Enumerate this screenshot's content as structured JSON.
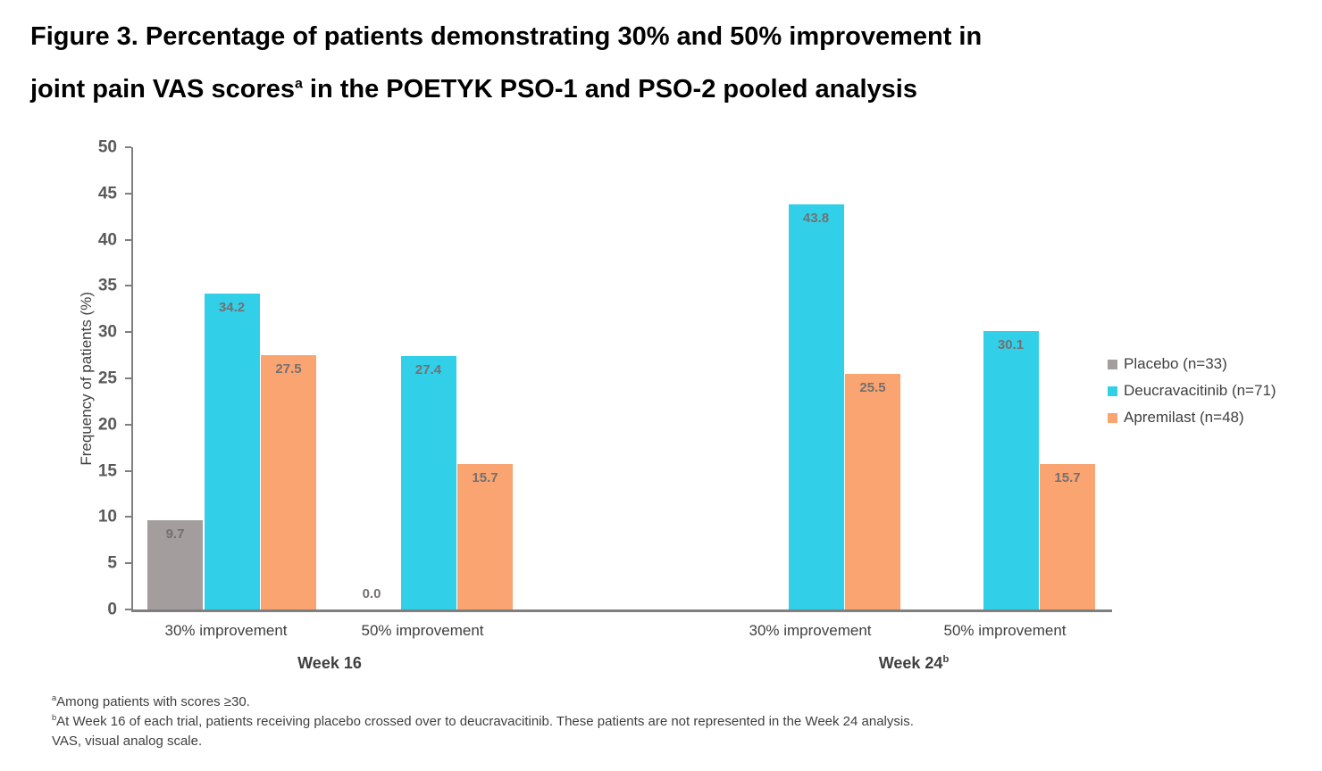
{
  "title": {
    "line1": "Figure 3. Percentage of patients demonstrating 30% and 50% improvement in",
    "line2_pre": "joint pain VAS scores",
    "line2_sup": "a",
    "line2_post": " in the POETYK PSO-1 and PSO-2 pooled analysis"
  },
  "chart_data": {
    "type": "bar",
    "title": "Figure 3. Percentage of patients demonstrating 30% and 50% improvement in joint pain VAS scores in the POETYK PSO-1 and PSO-2 pooled analysis",
    "xlabel": "",
    "ylabel": "Frequency of patients (%)",
    "ylim": [
      0,
      50
    ],
    "ytick_step": 5,
    "grid": false,
    "legend_position": "right",
    "series": [
      {
        "id": "placebo",
        "name": "Placebo (n=33)",
        "color": "#a49d9d"
      },
      {
        "id": "deucravacitinib",
        "name": "Deucravacitinib (n=71)",
        "color": "#32cfe9"
      },
      {
        "id": "apremilast",
        "name": "Apremilast (n=48)",
        "color": "#f9a471"
      }
    ],
    "groups": [
      {
        "week": "Week 16",
        "category": "30% improvement",
        "values": [
          9.7,
          34.2,
          27.5
        ]
      },
      {
        "week": "Week 16",
        "category": "50% improvement",
        "values": [
          0.0,
          27.4,
          15.7
        ]
      },
      {
        "week": "Week 24",
        "category": "30% improvement",
        "values": [
          null,
          43.8,
          25.5
        ]
      },
      {
        "week": "Week 24",
        "category": "50% improvement",
        "values": [
          null,
          30.1,
          15.7
        ]
      }
    ],
    "week_axis": [
      {
        "label": "Week 16",
        "sup": ""
      },
      {
        "label": "Week 24",
        "sup": "b"
      }
    ],
    "colors": {
      "axis": "#7f7f7f",
      "tick_label": "#595959",
      "value_label": "#757070",
      "category_label": "#3f3f3f"
    }
  },
  "footnotes": [
    {
      "sup": "a",
      "text": "Among patients with scores ≥30."
    },
    {
      "sup": "b",
      "text": "At Week 16 of each trial, patients receiving placebo crossed over to deucravacitinib. These patients are not represented in the Week 24 analysis."
    },
    {
      "sup": "",
      "text": "VAS, visual analog scale."
    }
  ]
}
